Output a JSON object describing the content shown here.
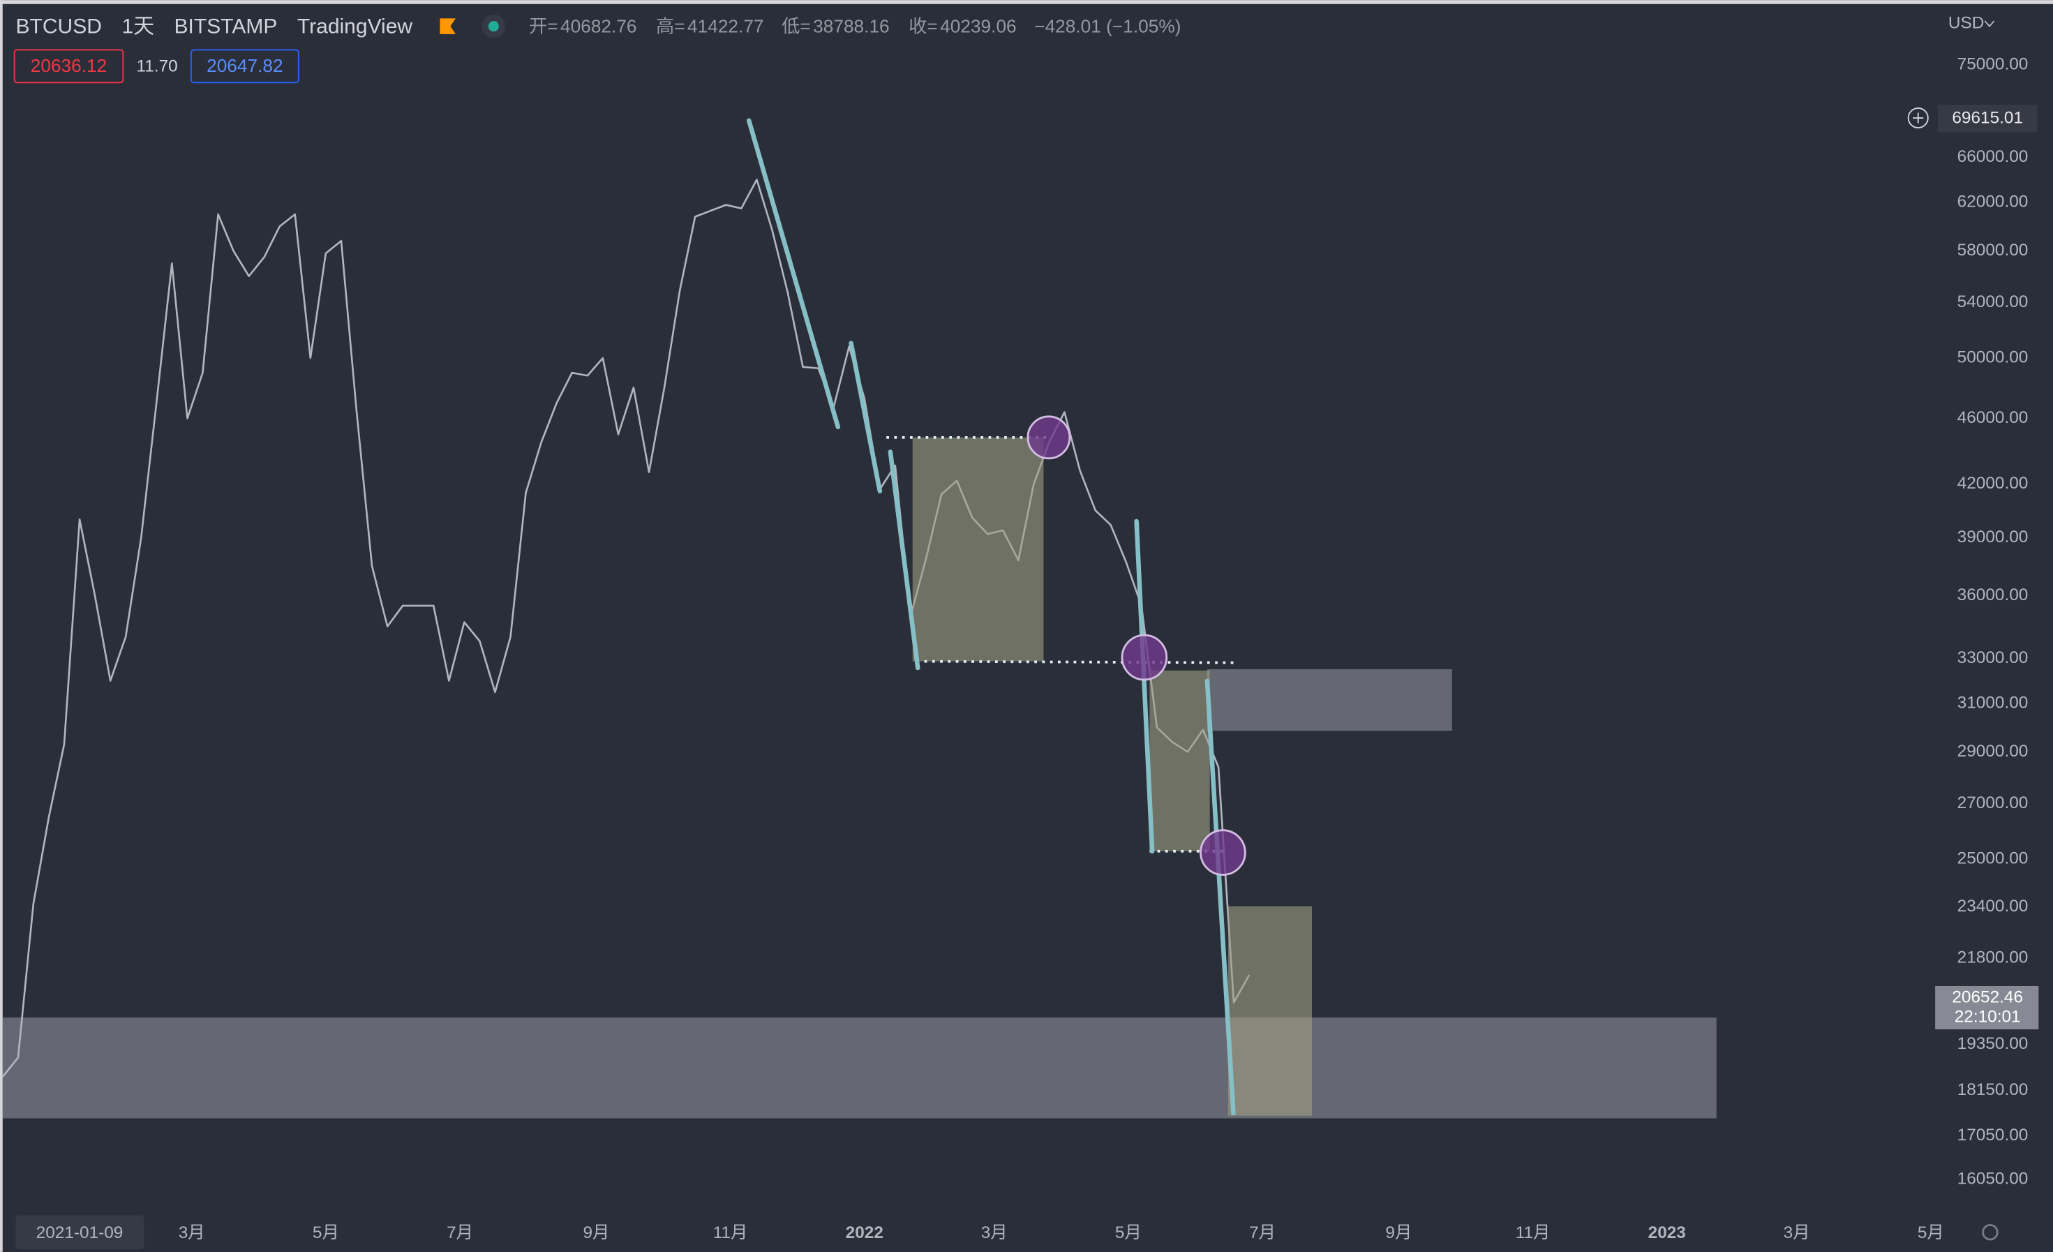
{
  "header": {
    "symbol": "BTCUSD",
    "interval": "1天",
    "exchange": "BITSTAMP",
    "source": "TradingView",
    "ohlc": [
      {
        "label": "开=",
        "value": "40682.76"
      },
      {
        "label": "高=",
        "value": "41422.77"
      },
      {
        "label": "低=",
        "value": "38788.16"
      },
      {
        "label": "收=",
        "value": "40239.06"
      }
    ],
    "change": "−428.01 (−1.05%)"
  },
  "badges": {
    "bid": "20636.12",
    "spread": "11.70",
    "ask": "20647.82"
  },
  "price_axis": {
    "currency": "USD",
    "crosshair_price": "69615.01",
    "last_price": "20652.46",
    "countdown": "22:10:01"
  },
  "chart_data": {
    "type": "line",
    "log_scale": true,
    "color": "#b2b5be",
    "x": [
      -27,
      -20,
      -13,
      -6,
      1,
      8,
      15,
      22,
      29,
      36,
      43,
      50,
      57,
      64,
      71,
      78,
      85,
      92,
      99,
      106,
      113,
      120,
      127,
      134,
      141,
      148,
      155,
      162,
      169,
      176,
      183,
      190,
      197,
      204,
      211,
      218,
      225,
      232,
      239,
      246,
      253,
      260,
      267,
      274,
      281,
      288,
      295,
      302,
      309,
      316,
      323,
      330,
      337,
      344,
      351,
      358,
      365,
      372,
      379,
      386,
      393,
      400,
      407,
      414,
      421,
      428,
      435,
      442,
      449,
      456,
      463,
      470,
      477,
      484,
      491,
      498,
      505,
      512,
      519,
      526,
      533,
      540
    ],
    "values": [
      18500,
      19000,
      23500,
      26500,
      29300,
      40000,
      36000,
      32000,
      34000,
      39000,
      47000,
      57000,
      46000,
      49000,
      61000,
      58000,
      56000,
      57500,
      60000,
      61000,
      50000,
      57800,
      58800,
      46500,
      37500,
      34500,
      35500,
      35500,
      35500,
      32000,
      34700,
      33800,
      31500,
      34000,
      41500,
      44500,
      47000,
      49000,
      48800,
      50000,
      45000,
      48000,
      42700,
      48000,
      54900,
      60800,
      61300,
      61800,
      61500,
      64000,
      59700,
      54800,
      49400,
      49300,
      46700,
      50800,
      47300,
      41700,
      43100,
      35000,
      37900,
      41400,
      42200,
      40100,
      39200,
      39400,
      37800,
      42000,
      44500,
      46400,
      42800,
      40500,
      39700,
      37700,
      35500,
      30000,
      29400,
      29000,
      29900,
      28400,
      20500,
      21300
    ],
    "xlim": [
      -27,
      852
    ],
    "ylim": [
      15360,
      81600
    ],
    "xticks": [
      {
        "value": 8,
        "label": "2021-01-09"
      },
      {
        "value": 59,
        "label": "3月"
      },
      {
        "value": 120,
        "label": "5月"
      },
      {
        "value": 181,
        "label": "7月"
      },
      {
        "value": 243,
        "label": "9月"
      },
      {
        "value": 304,
        "label": "11月"
      },
      {
        "value": 365,
        "label": "2022"
      },
      {
        "value": 424,
        "label": "3月"
      },
      {
        "value": 485,
        "label": "5月"
      },
      {
        "value": 546,
        "label": "7月"
      },
      {
        "value": 608,
        "label": "9月"
      },
      {
        "value": 669,
        "label": "11月"
      },
      {
        "value": 730,
        "label": "2023"
      },
      {
        "value": 789,
        "label": "3月"
      },
      {
        "value": 850,
        "label": "5月"
      }
    ],
    "yticks": [
      {
        "value": 75000,
        "label": "75000.00"
      },
      {
        "value": 66000,
        "label": "66000.00"
      },
      {
        "value": 62000,
        "label": "62000.00"
      },
      {
        "value": 58000,
        "label": "58000.00"
      },
      {
        "value": 54000,
        "label": "54000.00"
      },
      {
        "value": 50000,
        "label": "50000.00"
      },
      {
        "value": 46000,
        "label": "46000.00"
      },
      {
        "value": 42000,
        "label": "42000.00"
      },
      {
        "value": 39000,
        "label": "39000.00"
      },
      {
        "value": 36000,
        "label": "36000.00"
      },
      {
        "value": 33000,
        "label": "33000.00"
      },
      {
        "value": 31000,
        "label": "31000.00"
      },
      {
        "value": 29000,
        "label": "29000.00"
      },
      {
        "value": 27000,
        "label": "27000.00"
      },
      {
        "value": 25000,
        "label": "25000.00"
      },
      {
        "value": 23400,
        "label": "23400.00"
      },
      {
        "value": 21800,
        "label": "21800.00"
      },
      {
        "value": 19350,
        "label": "19350.00"
      },
      {
        "value": 18150,
        "label": "18150.00"
      },
      {
        "value": 17050,
        "label": "17050.00"
      },
      {
        "value": 16050,
        "label": "16050.00"
      }
    ]
  }
}
